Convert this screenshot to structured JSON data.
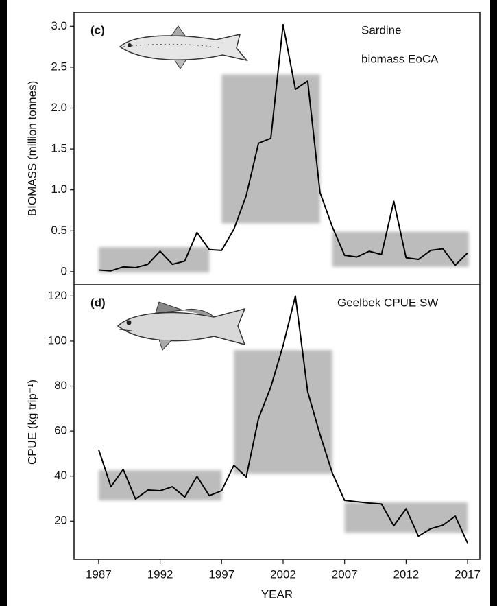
{
  "chart_data": [
    {
      "type": "line",
      "panel_label": "(c)",
      "annotation": [
        "Sardine",
        "biomass EoCA"
      ],
      "ylabel": "BIOMASS (million tonnes)",
      "x": [
        1987,
        1988,
        1989,
        1990,
        1991,
        1992,
        1993,
        1994,
        1995,
        1996,
        1997,
        1998,
        1999,
        2000,
        2001,
        2002,
        2003,
        2004,
        2005,
        2006,
        2007,
        2008,
        2009,
        2010,
        2011,
        2012,
        2013,
        2014,
        2015,
        2016,
        2017
      ],
      "series": [
        {
          "name": "Sardine",
          "color": "#000000",
          "values": [
            0.02,
            0.01,
            0.06,
            0.05,
            0.09,
            0.25,
            0.09,
            0.13,
            0.48,
            0.27,
            0.26,
            0.52,
            0.93,
            1.57,
            1.63,
            3.02,
            2.23,
            2.33,
            0.97,
            0.55,
            0.2,
            0.18,
            0.25,
            0.21,
            0.86,
            0.17,
            0.15,
            0.26,
            0.28,
            0.08,
            0.23
          ]
        }
      ],
      "periods": [
        {
          "x": [
            1987,
            1996
          ],
          "y": [
            -0.01,
            0.3
          ]
        },
        {
          "x": [
            1997,
            2005
          ],
          "y": [
            0.59,
            2.41
          ]
        },
        {
          "x": [
            2006,
            2017.1
          ],
          "y": [
            0.06,
            0.49
          ]
        }
      ],
      "period_color": "#bcbcbc",
      "xlim": [
        1985,
        2018
      ],
      "ylim": [
        -0.16,
        3.17
      ],
      "yticks": [
        0,
        {
          "value": 0.5,
          "label": "0.5"
        },
        {
          "value": 1,
          "label": "1.0"
        },
        {
          "value": 1.5,
          "label": "1.5"
        },
        {
          "value": 2,
          "label": "2.0"
        },
        {
          "value": 2.5,
          "label": "2.5"
        },
        {
          "value": 3,
          "label": "3.0"
        }
      ]
    },
    {
      "type": "line",
      "panel_label": "(d)",
      "annotation": [
        "Geelbek CPUE SW"
      ],
      "ylabel": "CPUE (kg trip⁻¹)",
      "xlabel": "YEAR",
      "x": [
        1987,
        1988,
        1989,
        1990,
        1991,
        1992,
        1993,
        1994,
        1995,
        1996,
        1997,
        1998,
        1999,
        2000,
        2001,
        2002,
        2003,
        2004,
        2005,
        2006,
        2007,
        2008,
        2009,
        2010,
        2011,
        2012,
        2013,
        2014,
        2015,
        2016,
        2017
      ],
      "series": [
        {
          "name": "Geelbek",
          "color": "#000000",
          "values": [
            51.8,
            35.3,
            43,
            29.8,
            33.8,
            33.5,
            35.3,
            30.7,
            39.9,
            31.3,
            33.5,
            44.8,
            39.6,
            65.6,
            79.6,
            98,
            120,
            77.5,
            58.5,
            41.4,
            29.2,
            28.6,
            28,
            27.6,
            17.9,
            25.5,
            13.3,
            16.6,
            18.2,
            22.2,
            10.2
          ]
        }
      ],
      "periods": [
        {
          "x": [
            1987,
            1997
          ],
          "y": [
            29.2,
            42.6
          ]
        },
        {
          "x": [
            1998,
            2006
          ],
          "y": [
            41,
            96
          ]
        },
        {
          "x": [
            2007,
            2017
          ],
          "y": [
            14.8,
            28.3
          ]
        }
      ],
      "period_color": "#bcbcbc",
      "xlim": [
        1985,
        2018
      ],
      "ylim": [
        3,
        125
      ],
      "xticks": [
        1987,
        1992,
        1997,
        2002,
        2007,
        2012,
        2017
      ],
      "yticks": [
        20,
        40,
        60,
        80,
        100,
        120
      ]
    }
  ]
}
